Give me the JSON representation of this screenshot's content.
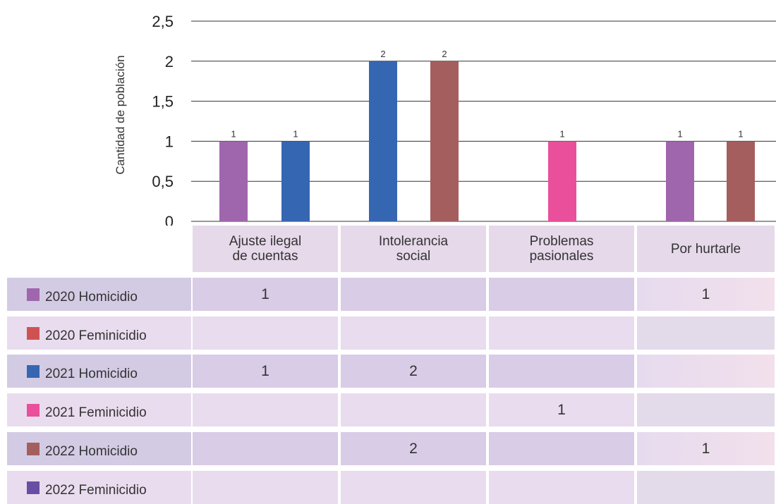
{
  "chart_data": {
    "type": "bar",
    "ylabel": "Cantidad de población",
    "ylim": [
      0,
      2.5
    ],
    "yticks": [
      "0",
      "0,5",
      "1",
      "1,5",
      "2",
      "2,5"
    ],
    "grid": true,
    "categories": [
      "Ajuste ilegal\nde cuentas",
      "Intolerancia\nsocial",
      "Problemas\npasionales",
      "Por hurtarle"
    ],
    "series": [
      {
        "name": "2020 Homicidio",
        "color": "#a066ad",
        "values": [
          1,
          null,
          null,
          1
        ]
      },
      {
        "name": "2020 Feminicidio",
        "color": "#cf5252",
        "values": [
          null,
          null,
          null,
          null
        ]
      },
      {
        "name": "2021 Homicidio",
        "color": "#3566b2",
        "values": [
          1,
          2,
          null,
          null
        ]
      },
      {
        "name": "2021 Feminicidio",
        "color": "#ea4f9b",
        "values": [
          null,
          null,
          1,
          null
        ]
      },
      {
        "name": "2022 Homicidio",
        "color": "#a55e5e",
        "values": [
          null,
          2,
          null,
          1
        ]
      },
      {
        "name": "2022 Feminicidio",
        "color": "#6a4ea5",
        "values": [
          null,
          null,
          null,
          null
        ]
      }
    ]
  }
}
